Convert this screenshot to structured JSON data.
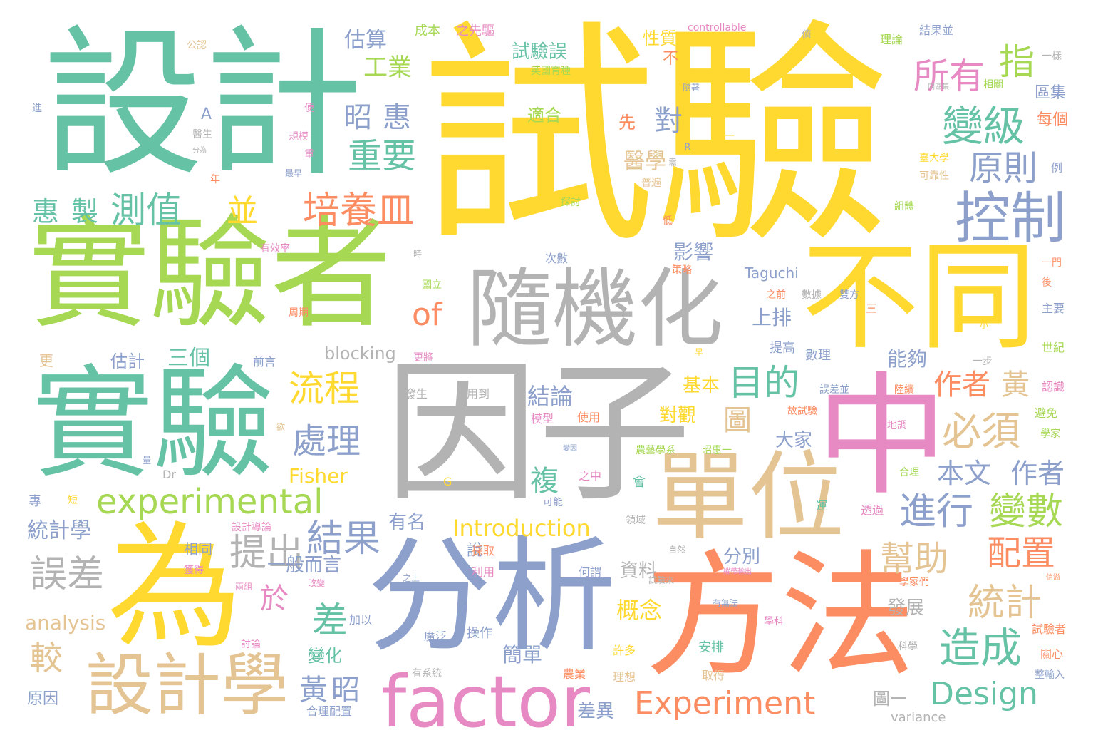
{
  "words": [
    {
      "t": "試驗",
      "c": "#ffd92f"
    },
    {
      "t": "因子",
      "c": "#b3b3b3"
    },
    {
      "t": "設計",
      "c": "#66c2a5"
    },
    {
      "t": "實驗者",
      "c": "#a6d854"
    },
    {
      "t": "實驗",
      "c": "#66c2a5"
    },
    {
      "t": "為",
      "c": "#ffd92f"
    },
    {
      "t": "分析",
      "c": "#8da0cb"
    },
    {
      "t": "方法",
      "c": "#fc8d62"
    },
    {
      "t": "中",
      "c": "#e78ac3"
    },
    {
      "t": "不同",
      "c": "#ffd92f"
    },
    {
      "t": "隨機化",
      "c": "#b3b3b3"
    },
    {
      "t": "單位",
      "c": "#e5c494"
    },
    {
      "t": "factor",
      "c": "#e78ac3"
    },
    {
      "t": "設計學",
      "c": "#e5c494"
    },
    {
      "t": "experimental",
      "c": "#a6d854"
    },
    {
      "t": "Experiment",
      "c": "#fc8d62"
    },
    {
      "t": "Design",
      "c": "#66c2a5"
    },
    {
      "t": "控制",
      "c": "#8da0cb"
    },
    {
      "t": "變級",
      "c": "#66c2a5"
    },
    {
      "t": "所有",
      "c": "#e78ac3"
    },
    {
      "t": "指",
      "c": "#a6d854"
    },
    {
      "t": "原則",
      "c": "#8da0cb"
    },
    {
      "t": "目的",
      "c": "#66c2a5"
    },
    {
      "t": "流程",
      "c": "#ffd92f"
    },
    {
      "t": "處理",
      "c": "#8da0cb"
    },
    {
      "t": "必須",
      "c": "#e5c494"
    },
    {
      "t": "作者",
      "c": "#fc8d62"
    },
    {
      "t": "黃",
      "c": "#e5c494"
    },
    {
      "t": "進行",
      "c": "#8da0cb"
    },
    {
      "t": "變數",
      "c": "#a6d854"
    },
    {
      "t": "配置",
      "c": "#fc8d62"
    },
    {
      "t": "幫助",
      "c": "#e5c494"
    },
    {
      "t": "統計",
      "c": "#e5c494"
    },
    {
      "t": "造成",
      "c": "#66c2a5"
    },
    {
      "t": "本文",
      "c": "#8da0cb"
    },
    {
      "t": "作者",
      "c": "#8da0cb"
    },
    {
      "t": "培養皿",
      "c": "#fc8d62"
    },
    {
      "t": "重要",
      "c": "#66c2a5"
    },
    {
      "t": "昭",
      "c": "#8da0cb"
    },
    {
      "t": "惠",
      "c": "#8da0cb"
    },
    {
      "t": "工業",
      "c": "#a6d854"
    },
    {
      "t": "估算",
      "c": "#8da0cb"
    },
    {
      "t": "測值",
      "c": "#66c2a5"
    },
    {
      "t": "惠",
      "c": "#66c2a5"
    },
    {
      "t": "製",
      "c": "#66c2a5"
    },
    {
      "t": "並",
      "c": "#ffd92f"
    },
    {
      "t": "of",
      "c": "#fc8d62"
    },
    {
      "t": "提出",
      "c": "#b3b3b3"
    },
    {
      "t": "結果",
      "c": "#8da0cb"
    },
    {
      "t": "誤差",
      "c": "#b3b3b3"
    },
    {
      "t": "較",
      "c": "#e5c494"
    },
    {
      "t": "於",
      "c": "#e78ac3"
    },
    {
      "t": "差",
      "c": "#66c2a5"
    },
    {
      "t": "黃",
      "c": "#8da0cb"
    },
    {
      "t": "昭",
      "c": "#8da0cb"
    },
    {
      "t": "複",
      "c": "#66c2a5"
    },
    {
      "t": "圖",
      "c": "#e5c494"
    },
    {
      "t": "結論",
      "c": "#8da0cb"
    },
    {
      "t": "對",
      "c": "#8da0cb"
    },
    {
      "t": "醫學",
      "c": "#e5c494"
    },
    {
      "t": "影響",
      "c": "#8da0cb"
    },
    {
      "t": "上排",
      "c": "#8da0cb"
    },
    {
      "t": "能夠",
      "c": "#8da0cb"
    },
    {
      "t": "統計學",
      "c": "#8da0cb"
    },
    {
      "t": "三個",
      "c": "#66c2a5"
    },
    {
      "t": "估計",
      "c": "#8da0cb"
    },
    {
      "t": "blocking",
      "c": "#b3b3b3"
    },
    {
      "t": "Fisher",
      "c": "#ffd92f"
    },
    {
      "t": "Introduction",
      "c": "#ffd92f"
    },
    {
      "t": "analysis",
      "c": "#e5c494"
    },
    {
      "t": "一般而言",
      "c": "#8da0cb"
    },
    {
      "t": "概念",
      "c": "#ffd92f"
    },
    {
      "t": "簡單",
      "c": "#8da0cb"
    },
    {
      "t": "大家",
      "c": "#8da0cb"
    },
    {
      "t": "基本",
      "c": "#ffd92f"
    },
    {
      "t": "對觀",
      "c": "#ffd92f"
    },
    {
      "t": "分別",
      "c": "#8da0cb"
    },
    {
      "t": "資料",
      "c": "#b3b3b3"
    },
    {
      "t": "發展",
      "c": "#b3b3b3"
    },
    {
      "t": "差異",
      "c": "#8da0cb"
    },
    {
      "t": "圖一",
      "c": "#b3b3b3"
    },
    {
      "t": "有名",
      "c": "#8da0cb"
    },
    {
      "t": "相同",
      "c": "#8da0cb"
    },
    {
      "t": "說",
      "c": "#8da0cb"
    },
    {
      "t": "變化",
      "c": "#66c2a5"
    },
    {
      "t": "試驗誤",
      "c": "#66c2a5"
    },
    {
      "t": "性質",
      "c": "#ffd92f"
    },
    {
      "t": "適合",
      "c": "#a6d854"
    },
    {
      "t": "先",
      "c": "#fc8d62"
    },
    {
      "t": "不",
      "c": "#fc8d62"
    },
    {
      "t": "區集",
      "c": "#8da0cb"
    },
    {
      "t": "每個",
      "c": "#fc8d62"
    },
    {
      "t": "Taguchi",
      "c": "#8da0cb"
    },
    {
      "t": "更",
      "c": "#e5c494"
    },
    {
      "t": "前言",
      "c": "#8da0cb"
    },
    {
      "t": "提高",
      "c": "#8da0cb"
    },
    {
      "t": "數理",
      "c": "#8da0cb"
    },
    {
      "t": "有效率",
      "c": "#e78ac3"
    },
    {
      "t": "成本",
      "c": "#a6d854"
    },
    {
      "t": "之先驅",
      "c": "#e78ac3"
    },
    {
      "t": "controllable",
      "c": "#e78ac3"
    },
    {
      "t": "理論",
      "c": "#a6d854"
    },
    {
      "t": "結果並",
      "c": "#8da0cb"
    },
    {
      "t": "variance",
      "c": "#b3b3b3"
    },
    {
      "t": "原因",
      "c": "#8da0cb"
    },
    {
      "t": "合理配置",
      "c": "#8da0cb"
    },
    {
      "t": "有系統",
      "c": "#b3b3b3"
    },
    {
      "t": "操作",
      "c": "#8da0cb"
    },
    {
      "t": "廣泛",
      "c": "#8da0cb"
    },
    {
      "t": "安排",
      "c": "#66c2a5"
    },
    {
      "t": "取得",
      "c": "#e5c494"
    },
    {
      "t": "許多",
      "c": "#ffd92f"
    },
    {
      "t": "理想",
      "c": "#e5c494"
    },
    {
      "t": "農業",
      "c": "#fc8d62"
    },
    {
      "t": "關心",
      "c": "#fc8d62"
    },
    {
      "t": "試驗者",
      "c": "#fc8d62"
    },
    {
      "t": "整輸入",
      "c": "#8da0cb"
    },
    {
      "t": "科學",
      "c": "#b3b3b3"
    },
    {
      "t": "學科",
      "c": "#e78ac3"
    },
    {
      "t": "學家們",
      "c": "#fc8d62"
    },
    {
      "t": "合理",
      "c": "#a6d854"
    },
    {
      "t": "避免",
      "c": "#a6d854"
    },
    {
      "t": "學家",
      "c": "#a6d854"
    },
    {
      "t": "認識",
      "c": "#e78ac3"
    },
    {
      "t": "世紀",
      "c": "#a6d854"
    },
    {
      "t": "主要",
      "c": "#8da0cb"
    },
    {
      "t": "例",
      "c": "#8da0cb"
    },
    {
      "t": "相關",
      "c": "#a6d854"
    },
    {
      "t": "可靠性",
      "c": "#e5c494"
    },
    {
      "t": "一步",
      "c": "#b3b3b3"
    },
    {
      "t": "誤差並",
      "c": "#8da0cb"
    },
    {
      "t": "陸續",
      "c": "#fc8d62"
    },
    {
      "t": "地調",
      "c": "#e78ac3"
    },
    {
      "t": "故試驗",
      "c": "#fc8d62"
    },
    {
      "t": "之前",
      "c": "#fc8d62"
    },
    {
      "t": "數據",
      "c": "#b3b3b3"
    },
    {
      "t": "雙方",
      "c": "#8da0cb"
    },
    {
      "t": "農藝學系",
      "c": "#a6d854"
    },
    {
      "t": "昭惠一",
      "c": "#a6d854"
    },
    {
      "t": "發生",
      "c": "#b3b3b3"
    },
    {
      "t": "用到",
      "c": "#b3b3b3"
    },
    {
      "t": "模型",
      "c": "#e78ac3"
    },
    {
      "t": "使用",
      "c": "#fc8d62"
    },
    {
      "t": "之中",
      "c": "#e78ac3"
    },
    {
      "t": "可能",
      "c": "#8da0cb"
    },
    {
      "t": "會",
      "c": "#66c2a5"
    },
    {
      "t": "領域",
      "c": "#b3b3b3"
    },
    {
      "t": "透過",
      "c": "#e78ac3"
    },
    {
      "t": "運",
      "c": "#66c2a5"
    },
    {
      "t": "何謂",
      "c": "#8da0cb"
    },
    {
      "t": "利用",
      "c": "#e78ac3"
    },
    {
      "t": "採取",
      "c": "#fc8d62"
    },
    {
      "t": "改變",
      "c": "#e78ac3"
    },
    {
      "t": "設計導論",
      "c": "#e78ac3"
    },
    {
      "t": "獲得",
      "c": "#e78ac3"
    },
    {
      "t": "加以",
      "c": "#8da0cb"
    },
    {
      "t": "討論",
      "c": "#e78ac3"
    },
    {
      "t": "專",
      "c": "#8da0cb"
    },
    {
      "t": "短",
      "c": "#ffd92f"
    },
    {
      "t": "國立",
      "c": "#a6d854"
    },
    {
      "t": "周期",
      "c": "#fc8d62"
    },
    {
      "t": "更將",
      "c": "#e78ac3"
    },
    {
      "t": "次數",
      "c": "#8da0cb"
    },
    {
      "t": "策略",
      "c": "#fc8d62"
    },
    {
      "t": "探討",
      "c": "#a6d854"
    },
    {
      "t": "普遍",
      "c": "#e5c494"
    },
    {
      "t": "隨著",
      "c": "#8da0cb"
    },
    {
      "t": "英國育種",
      "c": "#a6d854"
    },
    {
      "t": "一樣",
      "c": "#b3b3b3"
    },
    {
      "t": "臺大學",
      "c": "#ffd92f"
    },
    {
      "t": "規模",
      "c": "#e78ac3"
    },
    {
      "t": "醫生",
      "c": "#b3b3b3"
    },
    {
      "t": "最早",
      "c": "#8da0cb"
    },
    {
      "t": "便",
      "c": "#e78ac3"
    },
    {
      "t": "重",
      "c": "#e78ac3"
    },
    {
      "t": "年",
      "c": "#fc8d62"
    },
    {
      "t": "進",
      "c": "#8da0cb"
    },
    {
      "t": "A",
      "c": "#8da0cb"
    },
    {
      "t": "公認",
      "c": "#e5c494"
    },
    {
      "t": "值",
      "c": "#b3b3b3"
    },
    {
      "t": "一門",
      "c": "#fc8d62"
    },
    {
      "t": "後",
      "c": "#fc8d62"
    },
    {
      "t": "小",
      "c": "#ffd92f"
    },
    {
      "t": "早",
      "c": "#ffd92f"
    },
    {
      "t": "三",
      "c": "#fc8d62"
    },
    {
      "t": "二",
      "c": "#ffd92f"
    },
    {
      "t": "時",
      "c": "#b3b3b3"
    },
    {
      "t": "低",
      "c": "#fc8d62"
    },
    {
      "t": "需",
      "c": "#b3b3b3"
    },
    {
      "t": "R",
      "c": "#8da0cb"
    },
    {
      "t": "G",
      "c": "#ffd92f"
    },
    {
      "t": "Dr",
      "c": "#b3b3b3"
    },
    {
      "t": "量",
      "c": "#8da0cb"
    },
    {
      "t": "欲",
      "c": "#e5c494"
    },
    {
      "t": "組體",
      "c": "#a6d854"
    },
    {
      "t": "試驗來",
      "c": "#b3b3b3"
    },
    {
      "t": "有無法",
      "c": "#8da0cb"
    },
    {
      "t": "之上",
      "c": "#8da0cb"
    },
    {
      "t": "兩組",
      "c": "#e78ac3"
    },
    {
      "t": "自然",
      "c": "#b3b3b3"
    },
    {
      "t": "縱帶輸出",
      "c": "#e78ac3"
    },
    {
      "t": "信溢",
      "c": "#fc8d62"
    },
    {
      "t": "同區集",
      "c": "#b3b3b3"
    },
    {
      "t": "分為",
      "c": "#b3b3b3"
    },
    {
      "t": "變因",
      "c": "#8da0cb"
    }
  ]
}
